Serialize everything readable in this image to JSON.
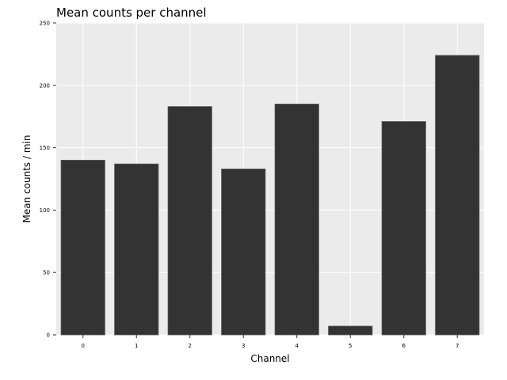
{
  "chart_data": {
    "type": "bar",
    "title": "Mean counts per channel",
    "xlabel": "Channel",
    "ylabel": "Mean counts / min",
    "categories": [
      "0",
      "1",
      "2",
      "3",
      "4",
      "5",
      "6",
      "7"
    ],
    "values": [
      140,
      137,
      183,
      133,
      185,
      7,
      171,
      224
    ],
    "ylim": [
      0,
      250
    ],
    "yticks": [
      0,
      50,
      100,
      150,
      200,
      250
    ],
    "grid": true,
    "legend": "none",
    "colors": {
      "bar": "#333333",
      "bar_edge": "#5a5a5a",
      "panel_background": "#ebebeb",
      "grid": "#ffffff",
      "text": "#000000"
    }
  }
}
